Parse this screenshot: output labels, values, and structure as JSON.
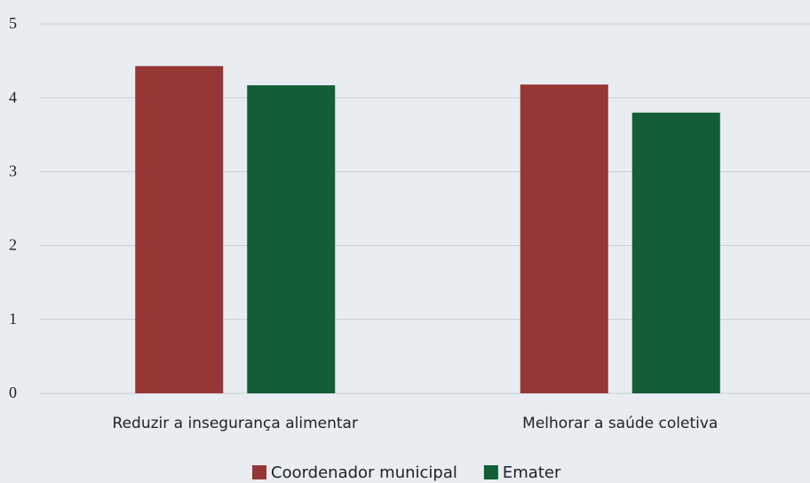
{
  "chart_data": {
    "type": "bar",
    "categories": [
      "Reduzir a insegurança alimentar",
      "Melhorar a saúde coletiva"
    ],
    "series": [
      {
        "name": "Coordenador municipal",
        "color": "#953735",
        "values": [
          4.43,
          4.18
        ]
      },
      {
        "name": "Emater",
        "color": "#135e37",
        "values": [
          4.17,
          3.8
        ]
      }
    ],
    "ylim": [
      0,
      5
    ],
    "yticks": [
      0,
      1,
      2,
      3,
      4,
      5
    ],
    "grid": true,
    "legend": "bottom"
  }
}
